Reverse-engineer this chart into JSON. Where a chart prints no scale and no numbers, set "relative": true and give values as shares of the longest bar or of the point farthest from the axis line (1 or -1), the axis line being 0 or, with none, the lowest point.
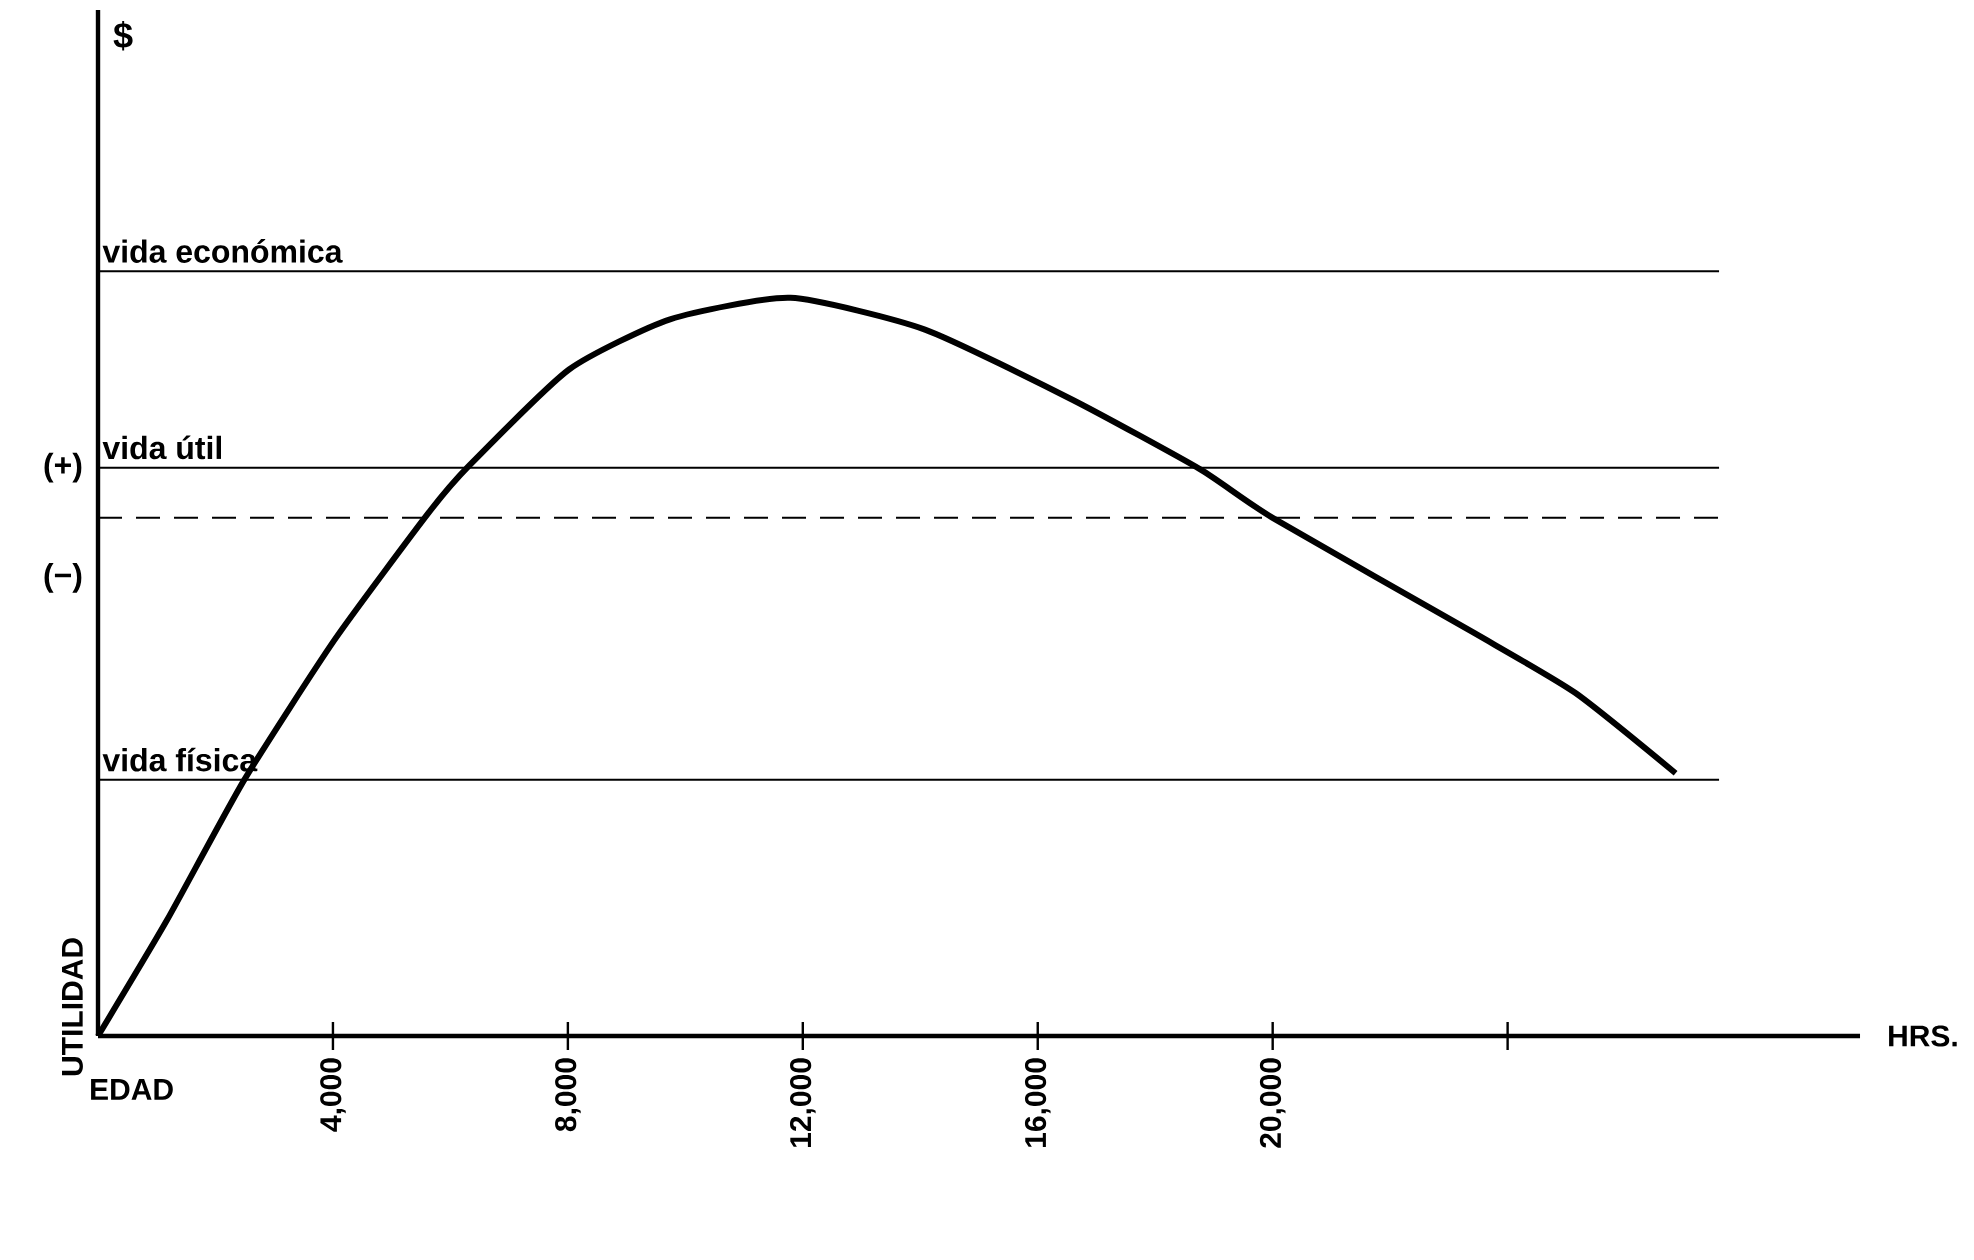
{
  "chart_data": {
    "type": "line",
    "relative": true,
    "xlabel": "HRS.",
    "ylabel": "UTILIDAD",
    "annotations": [
      "$",
      "(+)",
      "(−)",
      "EDAD"
    ],
    "x": [
      0,
      1175,
      2490,
      4030,
      5630,
      6310,
      8020,
      9740,
      11790,
      14080,
      16590,
      18760,
      20000,
      23430,
      25150,
      26860
    ],
    "values": [
      0,
      0.157,
      0.347,
      0.537,
      0.709,
      0.772,
      0.903,
      0.971,
      1,
      0.957,
      0.862,
      0.768,
      0.702,
      0.546,
      0.465,
      0.356
    ],
    "color": "#000000",
    "marker": "none",
    "line_style": "solid",
    "grid": false,
    "xlim": [
      0,
      30000
    ],
    "xticks": [
      {
        "value": 4000,
        "label": "4,000"
      },
      {
        "value": 8000,
        "label": "8,000"
      },
      {
        "value": 12000,
        "label": "12,000"
      },
      {
        "value": 16000,
        "label": "16,000"
      },
      {
        "value": 20000,
        "label": "20,000"
      },
      {
        "value": 24000,
        "label": null
      }
    ],
    "ref_lines": [
      {
        "axis": "y",
        "value": 1.036,
        "label": "vida económica"
      },
      {
        "axis": "y",
        "value": 0.77,
        "label": "vida útil"
      },
      {
        "axis": "y",
        "value": 0.702,
        "line_style": "dashed"
      },
      {
        "axis": "y",
        "value": 0.347,
        "label": "vida física"
      }
    ]
  }
}
